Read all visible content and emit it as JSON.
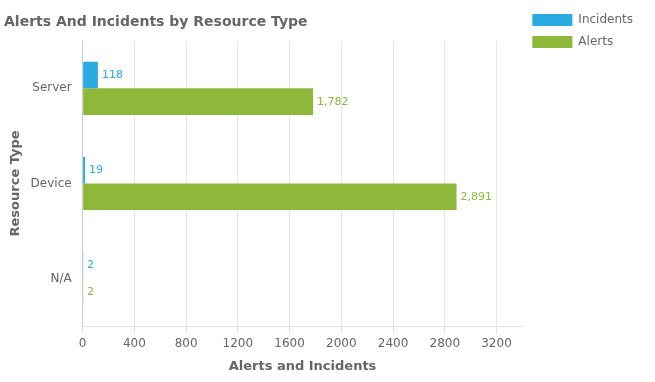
{
  "chart_data": {
    "type": "bar",
    "orientation": "horizontal",
    "title": "Alerts And Incidents by Resource Type",
    "xlabel": "Alerts and Incidents",
    "ylabel": "Resource Type",
    "categories": [
      "N/A",
      "Device",
      "Server"
    ],
    "series": [
      {
        "name": "Incidents",
        "color": "#29ABE2",
        "values": [
          2,
          19,
          118
        ]
      },
      {
        "name": "Alerts",
        "color": "#8DB83A",
        "values": [
          2,
          2891,
          1782
        ],
        "value_labels": [
          "2",
          "2,891",
          "1,782"
        ]
      }
    ],
    "xlim": [
      0,
      3400
    ],
    "xticks": [
      0,
      400,
      800,
      1200,
      1600,
      2000,
      2400,
      2800,
      3200
    ],
    "grid": "x",
    "legend": "right",
    "data_labels": true
  }
}
